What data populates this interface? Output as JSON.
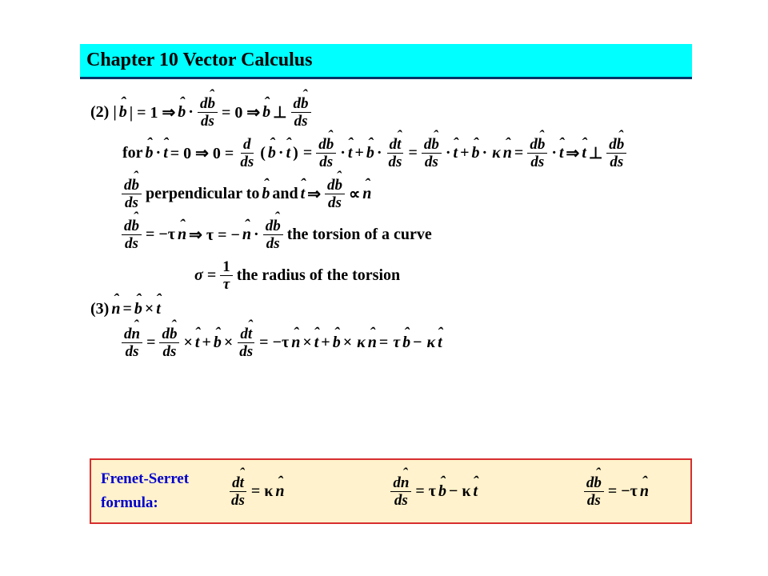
{
  "header": {
    "title": "Chapter 10    Vector Calculus",
    "bg_color": "#00ffff",
    "underline_color": "#003366",
    "title_color": "#000000",
    "title_fontsize": 24
  },
  "body": {
    "text_color": "#000000",
    "fontsize": 20,
    "font_family": "Times New Roman",
    "font_weight": "bold",
    "font_style": "italic",
    "lines": {
      "l1_prefix": "(2) |",
      "l1_b": "b",
      "l1_eq1": "| = 1 ⇒ ",
      "l1_dot": " · ",
      "l1_eqzero": " = 0 ⇒ ",
      "l1_perp": " ⊥ ",
      "l2_for": "for ",
      "l2_text1": " = 0 ⇒ 0 = ",
      "l2_paren_open": "(",
      "l2_paren_close": ")",
      "l2_eq": " = ",
      "l2_plus": " + ",
      "l2_kappa": "κ",
      "l2_arrow": " ⇒ ",
      "l3_perp": " perpendicular to ",
      "l3_and": " and ",
      "l3_arrow": " ⇒ ",
      "l3_prop": " ∝ ",
      "l4_eqneg": " = −τ",
      "l4_arrow": " ⇒ τ = −",
      "l4_torsion": "  the torsion of a curve",
      "l5_sigma": "σ = ",
      "l5_one": "1",
      "l5_tau": "τ",
      "l5_radius": " the radius of the torsion",
      "l6_prefix": "(3) ",
      "l6_cross": " × ",
      "l7_eq": " = ",
      "l7_plus": " + ",
      "l7_negtau": " = −τ",
      "l7_kappa": "κ",
      "l7_tau": "τ",
      "l7_minus": " − ",
      "d": "d",
      "ds": "ds",
      "n": "n",
      "t": "t"
    }
  },
  "formula_box": {
    "bg_color": "#fff2cc",
    "border_color": "#d62f2f",
    "label_color": "#0000cc",
    "label_line1": "Frenet-Serret",
    "label_line2": "formula:",
    "eq1_rhs_prefix": " = κ",
    "eq2_rhs_prefix": " = τ",
    "eq2_minus": " − κ",
    "eq3_rhs_prefix": " = −τ",
    "d": "d",
    "ds": "ds",
    "t": "t",
    "n": "n",
    "b": "b"
  }
}
